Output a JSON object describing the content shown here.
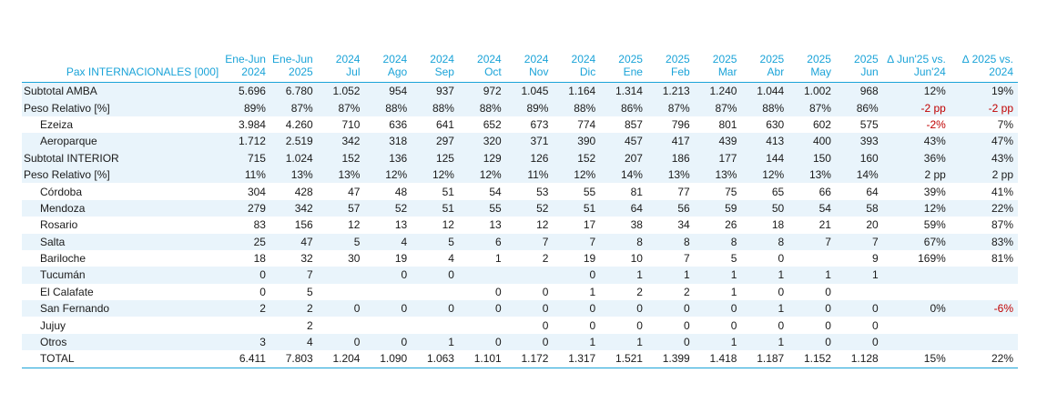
{
  "title": "Pax INTERNACIONALES [000]",
  "columns": [
    {
      "l1": "Ene-Jun",
      "l2": "2024"
    },
    {
      "l1": "Ene-Jun",
      "l2": "2025"
    },
    {
      "l1": "2024",
      "l2": "Jul"
    },
    {
      "l1": "2024",
      "l2": "Ago"
    },
    {
      "l1": "2024",
      "l2": "Sep"
    },
    {
      "l1": "2024",
      "l2": "Oct"
    },
    {
      "l1": "2024",
      "l2": "Nov"
    },
    {
      "l1": "2024",
      "l2": "Dic"
    },
    {
      "l1": "2025",
      "l2": "Ene"
    },
    {
      "l1": "2025",
      "l2": "Feb"
    },
    {
      "l1": "2025",
      "l2": "Mar"
    },
    {
      "l1": "2025",
      "l2": "Abr"
    },
    {
      "l1": "2025",
      "l2": "May"
    },
    {
      "l1": "2025",
      "l2": "Jun"
    },
    {
      "l1": "∆ Jun'25 vs.",
      "l2": "Jun'24"
    },
    {
      "l1": "∆ 2025 vs.",
      "l2": "2024"
    }
  ],
  "rows": [
    {
      "label": "Subtotal AMBA",
      "kind": "sub",
      "shade": true,
      "values": [
        "5.696",
        "6.780",
        "1.052",
        "954",
        "937",
        "972",
        "1.045",
        "1.164",
        "1.314",
        "1.213",
        "1.240",
        "1.044",
        "1.002",
        "968",
        "12%",
        "19%"
      ]
    },
    {
      "label": "Peso Relativo [%]",
      "kind": "sub",
      "shade": true,
      "values": [
        "89%",
        "87%",
        "87%",
        "88%",
        "88%",
        "88%",
        "89%",
        "88%",
        "86%",
        "87%",
        "87%",
        "88%",
        "87%",
        "86%",
        "-2 pp",
        "-2 pp"
      ]
    },
    {
      "label": "Ezeiza",
      "kind": "item",
      "shade": false,
      "values": [
        "3.984",
        "4.260",
        "710",
        "636",
        "641",
        "652",
        "673",
        "774",
        "857",
        "796",
        "801",
        "630",
        "602",
        "575",
        "-2%",
        "7%"
      ]
    },
    {
      "label": "Aeroparque",
      "kind": "item",
      "shade": true,
      "values": [
        "1.712",
        "2.519",
        "342",
        "318",
        "297",
        "320",
        "371",
        "390",
        "457",
        "417",
        "439",
        "413",
        "400",
        "393",
        "43%",
        "47%"
      ]
    },
    {
      "label": "Subtotal INTERIOR",
      "kind": "sub",
      "shade": true,
      "values": [
        "715",
        "1.024",
        "152",
        "136",
        "125",
        "129",
        "126",
        "152",
        "207",
        "186",
        "177",
        "144",
        "150",
        "160",
        "36%",
        "43%"
      ]
    },
    {
      "label": "Peso Relativo [%]",
      "kind": "sub",
      "shade": true,
      "values": [
        "11%",
        "13%",
        "13%",
        "12%",
        "12%",
        "12%",
        "11%",
        "12%",
        "14%",
        "13%",
        "13%",
        "12%",
        "13%",
        "14%",
        "2 pp",
        "2 pp"
      ]
    },
    {
      "label": "Córdoba",
      "kind": "item",
      "shade": false,
      "values": [
        "304",
        "428",
        "47",
        "48",
        "51",
        "54",
        "53",
        "55",
        "81",
        "77",
        "75",
        "65",
        "66",
        "64",
        "39%",
        "41%"
      ]
    },
    {
      "label": "Mendoza",
      "kind": "item",
      "shade": true,
      "values": [
        "279",
        "342",
        "57",
        "52",
        "51",
        "55",
        "52",
        "51",
        "64",
        "56",
        "59",
        "50",
        "54",
        "58",
        "12%",
        "22%"
      ]
    },
    {
      "label": "Rosario",
      "kind": "item",
      "shade": false,
      "values": [
        "83",
        "156",
        "12",
        "13",
        "12",
        "13",
        "12",
        "17",
        "38",
        "34",
        "26",
        "18",
        "21",
        "20",
        "59%",
        "87%"
      ]
    },
    {
      "label": "Salta",
      "kind": "item",
      "shade": true,
      "values": [
        "25",
        "47",
        "5",
        "4",
        "5",
        "6",
        "7",
        "7",
        "8",
        "8",
        "8",
        "8",
        "7",
        "7",
        "67%",
        "83%"
      ]
    },
    {
      "label": "Bariloche",
      "kind": "item",
      "shade": false,
      "values": [
        "18",
        "32",
        "30",
        "19",
        "4",
        "1",
        "2",
        "19",
        "10",
        "7",
        "5",
        "0",
        "",
        "9",
        "169%",
        "81%"
      ]
    },
    {
      "label": "Tucumán",
      "kind": "item",
      "shade": true,
      "values": [
        "0",
        "7",
        "",
        "0",
        "0",
        "",
        "",
        "0",
        "1",
        "1",
        "1",
        "1",
        "1",
        "1",
        "",
        ""
      ]
    },
    {
      "label": "El Calafate",
      "kind": "item",
      "shade": false,
      "values": [
        "0",
        "5",
        "",
        "",
        "",
        "0",
        "0",
        "1",
        "2",
        "2",
        "1",
        "0",
        "0",
        "",
        "",
        ""
      ]
    },
    {
      "label": "San Fernando",
      "kind": "item",
      "shade": true,
      "values": [
        "2",
        "2",
        "0",
        "0",
        "0",
        "0",
        "0",
        "0",
        "0",
        "0",
        "0",
        "1",
        "0",
        "0",
        "0%",
        "-6%"
      ]
    },
    {
      "label": "Jujuy",
      "kind": "item",
      "shade": false,
      "values": [
        "",
        "2",
        "",
        "",
        "",
        "",
        "0",
        "0",
        "0",
        "0",
        "0",
        "0",
        "0",
        "0",
        "",
        ""
      ]
    },
    {
      "label": "Otros",
      "kind": "item",
      "shade": true,
      "values": [
        "3",
        "4",
        "0",
        "0",
        "1",
        "0",
        "0",
        "1",
        "1",
        "0",
        "1",
        "1",
        "0",
        "0",
        "",
        ""
      ]
    },
    {
      "label": "TOTAL",
      "kind": "total",
      "shade": false,
      "values": [
        "6.411",
        "7.803",
        "1.204",
        "1.090",
        "1.063",
        "1.101",
        "1.172",
        "1.317",
        "1.521",
        "1.399",
        "1.418",
        "1.187",
        "1.152",
        "1.128",
        "15%",
        "22%"
      ]
    }
  ]
}
